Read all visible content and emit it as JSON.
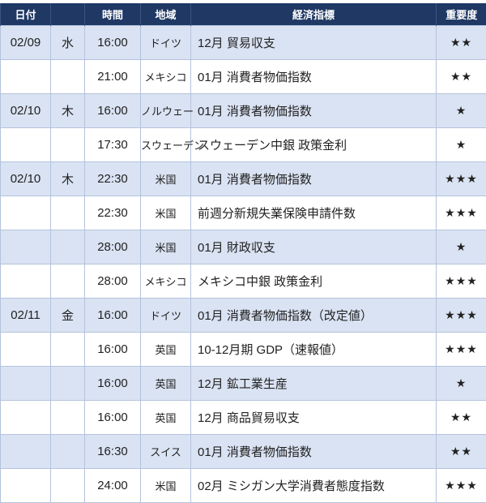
{
  "headers": {
    "date": "日付",
    "weekday": "",
    "time": "時間",
    "region": "地域",
    "indicator": "経済指標",
    "importance": "重要度"
  },
  "rows": [
    {
      "date": "02/09",
      "weekday": "水",
      "time": "16:00",
      "region": "ドイツ",
      "indicator": "12月 貿易収支",
      "stars": "★★"
    },
    {
      "date": "",
      "weekday": "",
      "time": "21:00",
      "region": "メキシコ",
      "indicator": "01月 消費者物価指数",
      "stars": "★★"
    },
    {
      "date": "02/10",
      "weekday": "木",
      "time": "16:00",
      "region": "ノルウェー",
      "indicator": "01月 消費者物価指数",
      "stars": "★"
    },
    {
      "date": "",
      "weekday": "",
      "time": "17:30",
      "region": "スウェーデン",
      "indicator": "スウェーデン中銀 政策金利",
      "stars": "★"
    },
    {
      "date": "02/10",
      "weekday": "木",
      "time": "22:30",
      "region": "米国",
      "indicator": "01月 消費者物価指数",
      "stars": "★★★"
    },
    {
      "date": "",
      "weekday": "",
      "time": "22:30",
      "region": "米国",
      "indicator": "前週分新規失業保険申請件数",
      "stars": "★★★"
    },
    {
      "date": "",
      "weekday": "",
      "time": "28:00",
      "region": "米国",
      "indicator": "01月 財政収支",
      "stars": "★"
    },
    {
      "date": "",
      "weekday": "",
      "time": "28:00",
      "region": "メキシコ",
      "indicator": "メキシコ中銀 政策金利",
      "stars": "★★★"
    },
    {
      "date": "02/11",
      "weekday": "金",
      "time": "16:00",
      "region": "ドイツ",
      "indicator": "01月 消費者物価指数（改定値）",
      "stars": "★★★"
    },
    {
      "date": "",
      "weekday": "",
      "time": "16:00",
      "region": "英国",
      "indicator": "10-12月期 GDP（速報値）",
      "stars": "★★★"
    },
    {
      "date": "",
      "weekday": "",
      "time": "16:00",
      "region": "英国",
      "indicator": "12月 鉱工業生産",
      "stars": "★"
    },
    {
      "date": "",
      "weekday": "",
      "time": "16:00",
      "region": "英国",
      "indicator": "12月 商品貿易収支",
      "stars": "★★"
    },
    {
      "date": "",
      "weekday": "",
      "time": "16:30",
      "region": "スイス",
      "indicator": "01月 消費者物価指数",
      "stars": "★★"
    },
    {
      "date": "",
      "weekday": "",
      "time": "24:00",
      "region": "米国",
      "indicator": "02月 ミシガン大学消費者態度指数",
      "stars": "★★★"
    }
  ]
}
